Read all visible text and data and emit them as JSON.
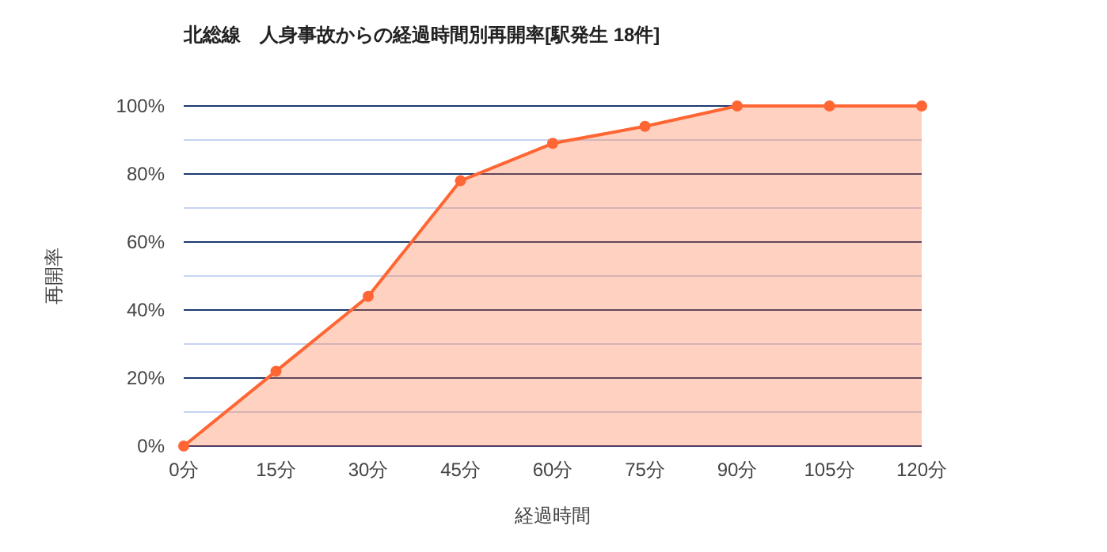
{
  "chart_data": {
    "type": "area",
    "title": "北総線　人身事故からの経過時間別再開率[駅発生 18件]",
    "xlabel": "経過時間",
    "ylabel": "再開率",
    "categories": [
      "0分",
      "15分",
      "30分",
      "45分",
      "60分",
      "75分",
      "90分",
      "105分",
      "120分"
    ],
    "series": [
      {
        "color": "#ff6633",
        "values": [
          0,
          22,
          44,
          78,
          89,
          94,
          100,
          100,
          100
        ]
      }
    ],
    "ylim": [
      0,
      100
    ],
    "yticks": [
      {
        "value": 0,
        "label": "0%"
      },
      {
        "value": 10,
        "label": null
      },
      {
        "value": 20,
        "label": "20%"
      },
      {
        "value": 30,
        "label": null
      },
      {
        "value": 40,
        "label": "40%"
      },
      {
        "value": 50,
        "label": null
      },
      {
        "value": 60,
        "label": "60%"
      },
      {
        "value": 70,
        "label": null
      },
      {
        "value": 80,
        "label": "80%"
      },
      {
        "value": 90,
        "label": null
      },
      {
        "value": 100,
        "label": "100%"
      }
    ],
    "grid": true,
    "marker": "circle",
    "line_style": "solid"
  }
}
